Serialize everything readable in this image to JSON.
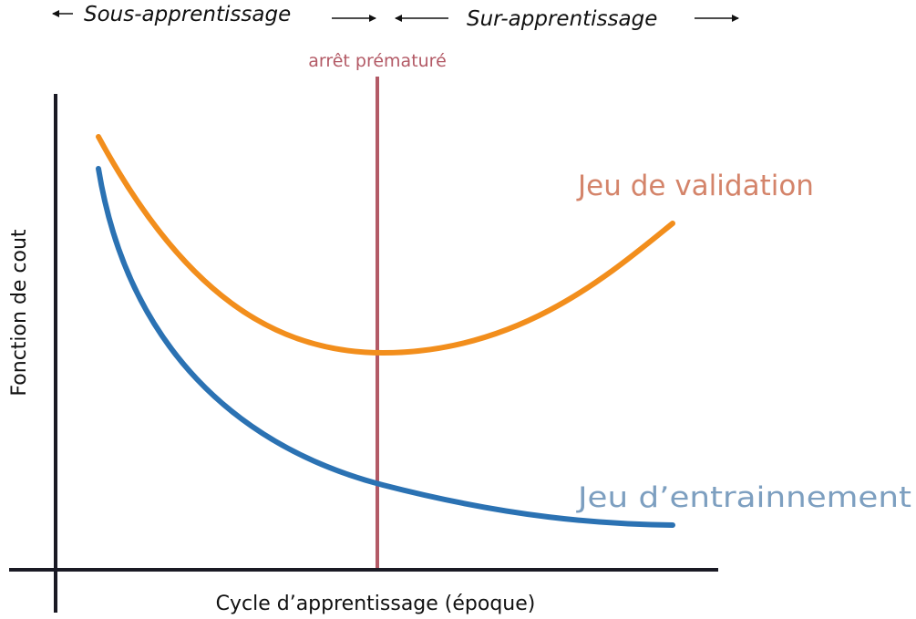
{
  "regions": {
    "underfit": "Sous-apprentissage",
    "overfit": "Sur-apprentissage"
  },
  "marker": {
    "label": "arrêt prématuré",
    "color": "#b35a66"
  },
  "series": {
    "validation": {
      "label": "Jeu de validation",
      "color": "#f28e1c",
      "label_color": "#d4846a"
    },
    "training": {
      "label": "Jeu d’entrainnement",
      "color": "#2b72b3",
      "label_color": "#7d9fc0"
    }
  },
  "axes": {
    "x_label": "Cycle d’apprentissage (époque)",
    "y_label": "Fonction de cout",
    "color": "#1a1a24"
  }
}
